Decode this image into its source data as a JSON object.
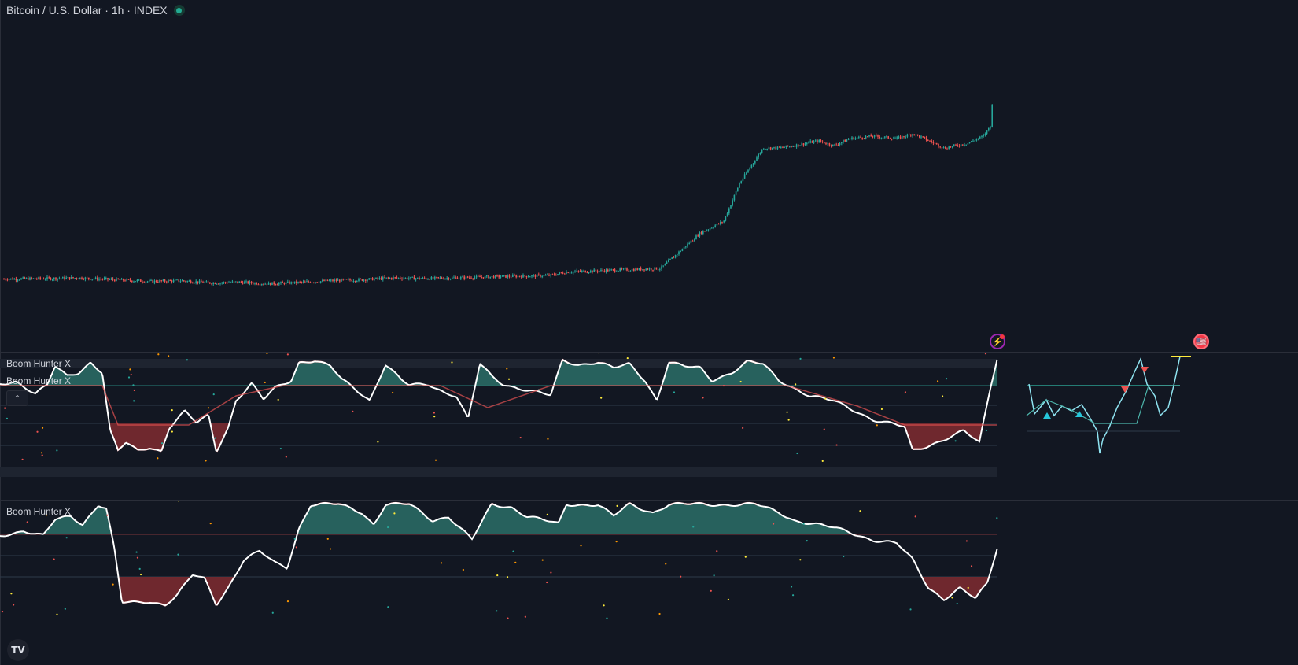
{
  "header": {
    "symbol_title": "Bitcoin / U.S. Dollar · 1h · INDEX",
    "market_status": "open"
  },
  "indicator_1": {
    "legend_lines": [
      "Boom Hunter X",
      "Boom Hunter X"
    ],
    "collapse_button": "⌃"
  },
  "indicator_2": {
    "legend": "Boom Hunter X"
  },
  "markers": {
    "event_icon": "⚡",
    "flag_icon": "🇺🇸"
  },
  "branding": {
    "logo": "TV"
  },
  "colors": {
    "background": "#121722",
    "up_candle": "#26a69a",
    "down_candle": "#ef5350",
    "oscillator_line": "#ffffff",
    "bull_fill": "#2b6f67",
    "bear_fill": "#7a2a30",
    "overbought_line": "#e55353",
    "cyan_line": "#8fe3f0",
    "yellow_line": "#ffeb3b"
  },
  "chart_data": [
    {
      "type": "candlestick",
      "title": "Bitcoin / U.S. Dollar · 1h · INDEX",
      "ylabel": "",
      "xlabel": "",
      "price_path": [
        [
          0,
          0.045
        ],
        [
          60,
          0.047
        ],
        [
          100,
          0.05
        ],
        [
          140,
          0.043
        ],
        [
          190,
          0.035
        ],
        [
          230,
          0.038
        ],
        [
          270,
          0.028
        ],
        [
          300,
          0.032
        ],
        [
          340,
          0.025
        ],
        [
          380,
          0.03
        ],
        [
          420,
          0.038
        ],
        [
          460,
          0.042
        ],
        [
          500,
          0.05
        ],
        [
          540,
          0.047
        ],
        [
          580,
          0.05
        ],
        [
          620,
          0.054
        ],
        [
          660,
          0.057
        ],
        [
          700,
          0.06
        ],
        [
          720,
          0.075
        ],
        [
          760,
          0.08
        ],
        [
          800,
          0.085
        ],
        [
          840,
          0.09
        ],
        [
          850,
          0.12
        ],
        [
          870,
          0.18
        ],
        [
          890,
          0.24
        ],
        [
          920,
          0.29
        ],
        [
          940,
          0.45
        ],
        [
          970,
          0.6
        ],
        [
          990,
          0.6
        ],
        [
          1010,
          0.61
        ],
        [
          1040,
          0.63
        ],
        [
          1060,
          0.61
        ],
        [
          1080,
          0.64
        ],
        [
          1110,
          0.65
        ],
        [
          1140,
          0.64
        ],
        [
          1160,
          0.66
        ],
        [
          1175,
          0.64
        ],
        [
          1200,
          0.6
        ],
        [
          1230,
          0.62
        ],
        [
          1250,
          0.65
        ],
        [
          1260,
          0.7
        ],
        [
          1263,
          0.9
        ]
      ]
    },
    {
      "type": "area",
      "title": "Boom Hunter X",
      "series": [
        {
          "name": "Boom Hunter X",
          "values_note": "smoothed oscillator; reconstructed"
        }
      ]
    },
    {
      "type": "area",
      "title": "Boom Hunter X",
      "series": [
        {
          "name": "Boom Hunter X"
        }
      ]
    }
  ]
}
